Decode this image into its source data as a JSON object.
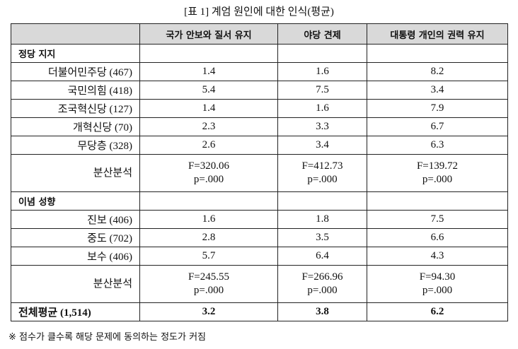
{
  "title": "[표 1] 계엄 원인에 대한 인식(평균)",
  "table": {
    "columns": [
      "국가 안보와 질서 유지",
      "야당 견제",
      "대통령 개인의 권력 유지"
    ],
    "sections": [
      {
        "label": "정당 지지",
        "rows": [
          {
            "label": "더불어민주당 (467)",
            "values": [
              1.4,
              1.6,
              8.2
            ]
          },
          {
            "label": "국민의힘 (418)",
            "values": [
              5.4,
              7.5,
              3.4
            ]
          },
          {
            "label": "조국혁신당 (127)",
            "values": [
              1.4,
              1.6,
              7.9
            ]
          },
          {
            "label": "개혁신당 (70)",
            "values": [
              2.3,
              3.3,
              6.7
            ]
          },
          {
            "label": "무당층 (328)",
            "values": [
              2.6,
              3.4,
              6.3
            ]
          }
        ],
        "anova": {
          "label": "분산분석",
          "cells": [
            [
              "F=320.06",
              "p=.000"
            ],
            [
              "F=412.73",
              "p=.000"
            ],
            [
              "F=139.72",
              "p=.000"
            ]
          ]
        }
      },
      {
        "label": "이념 성향",
        "rows": [
          {
            "label": "진보 (406)",
            "values": [
              1.6,
              1.8,
              7.5
            ]
          },
          {
            "label": "중도 (702)",
            "values": [
              2.8,
              3.5,
              6.6
            ]
          },
          {
            "label": "보수 (406)",
            "values": [
              5.7,
              6.4,
              4.3
            ]
          }
        ],
        "anova": {
          "label": "분산분석",
          "cells": [
            [
              "F=245.55",
              "p=.000"
            ],
            [
              "F=266.96",
              "p=.000"
            ],
            [
              "F=94.30",
              "p=.000"
            ]
          ]
        }
      }
    ],
    "total": {
      "label": "전체평균 (1,514)",
      "values": [
        3.2,
        3.8,
        6.2
      ]
    }
  },
  "footnote": "※ 점수가 클수록 해당 문제에 동의하는 정도가 커짐"
}
